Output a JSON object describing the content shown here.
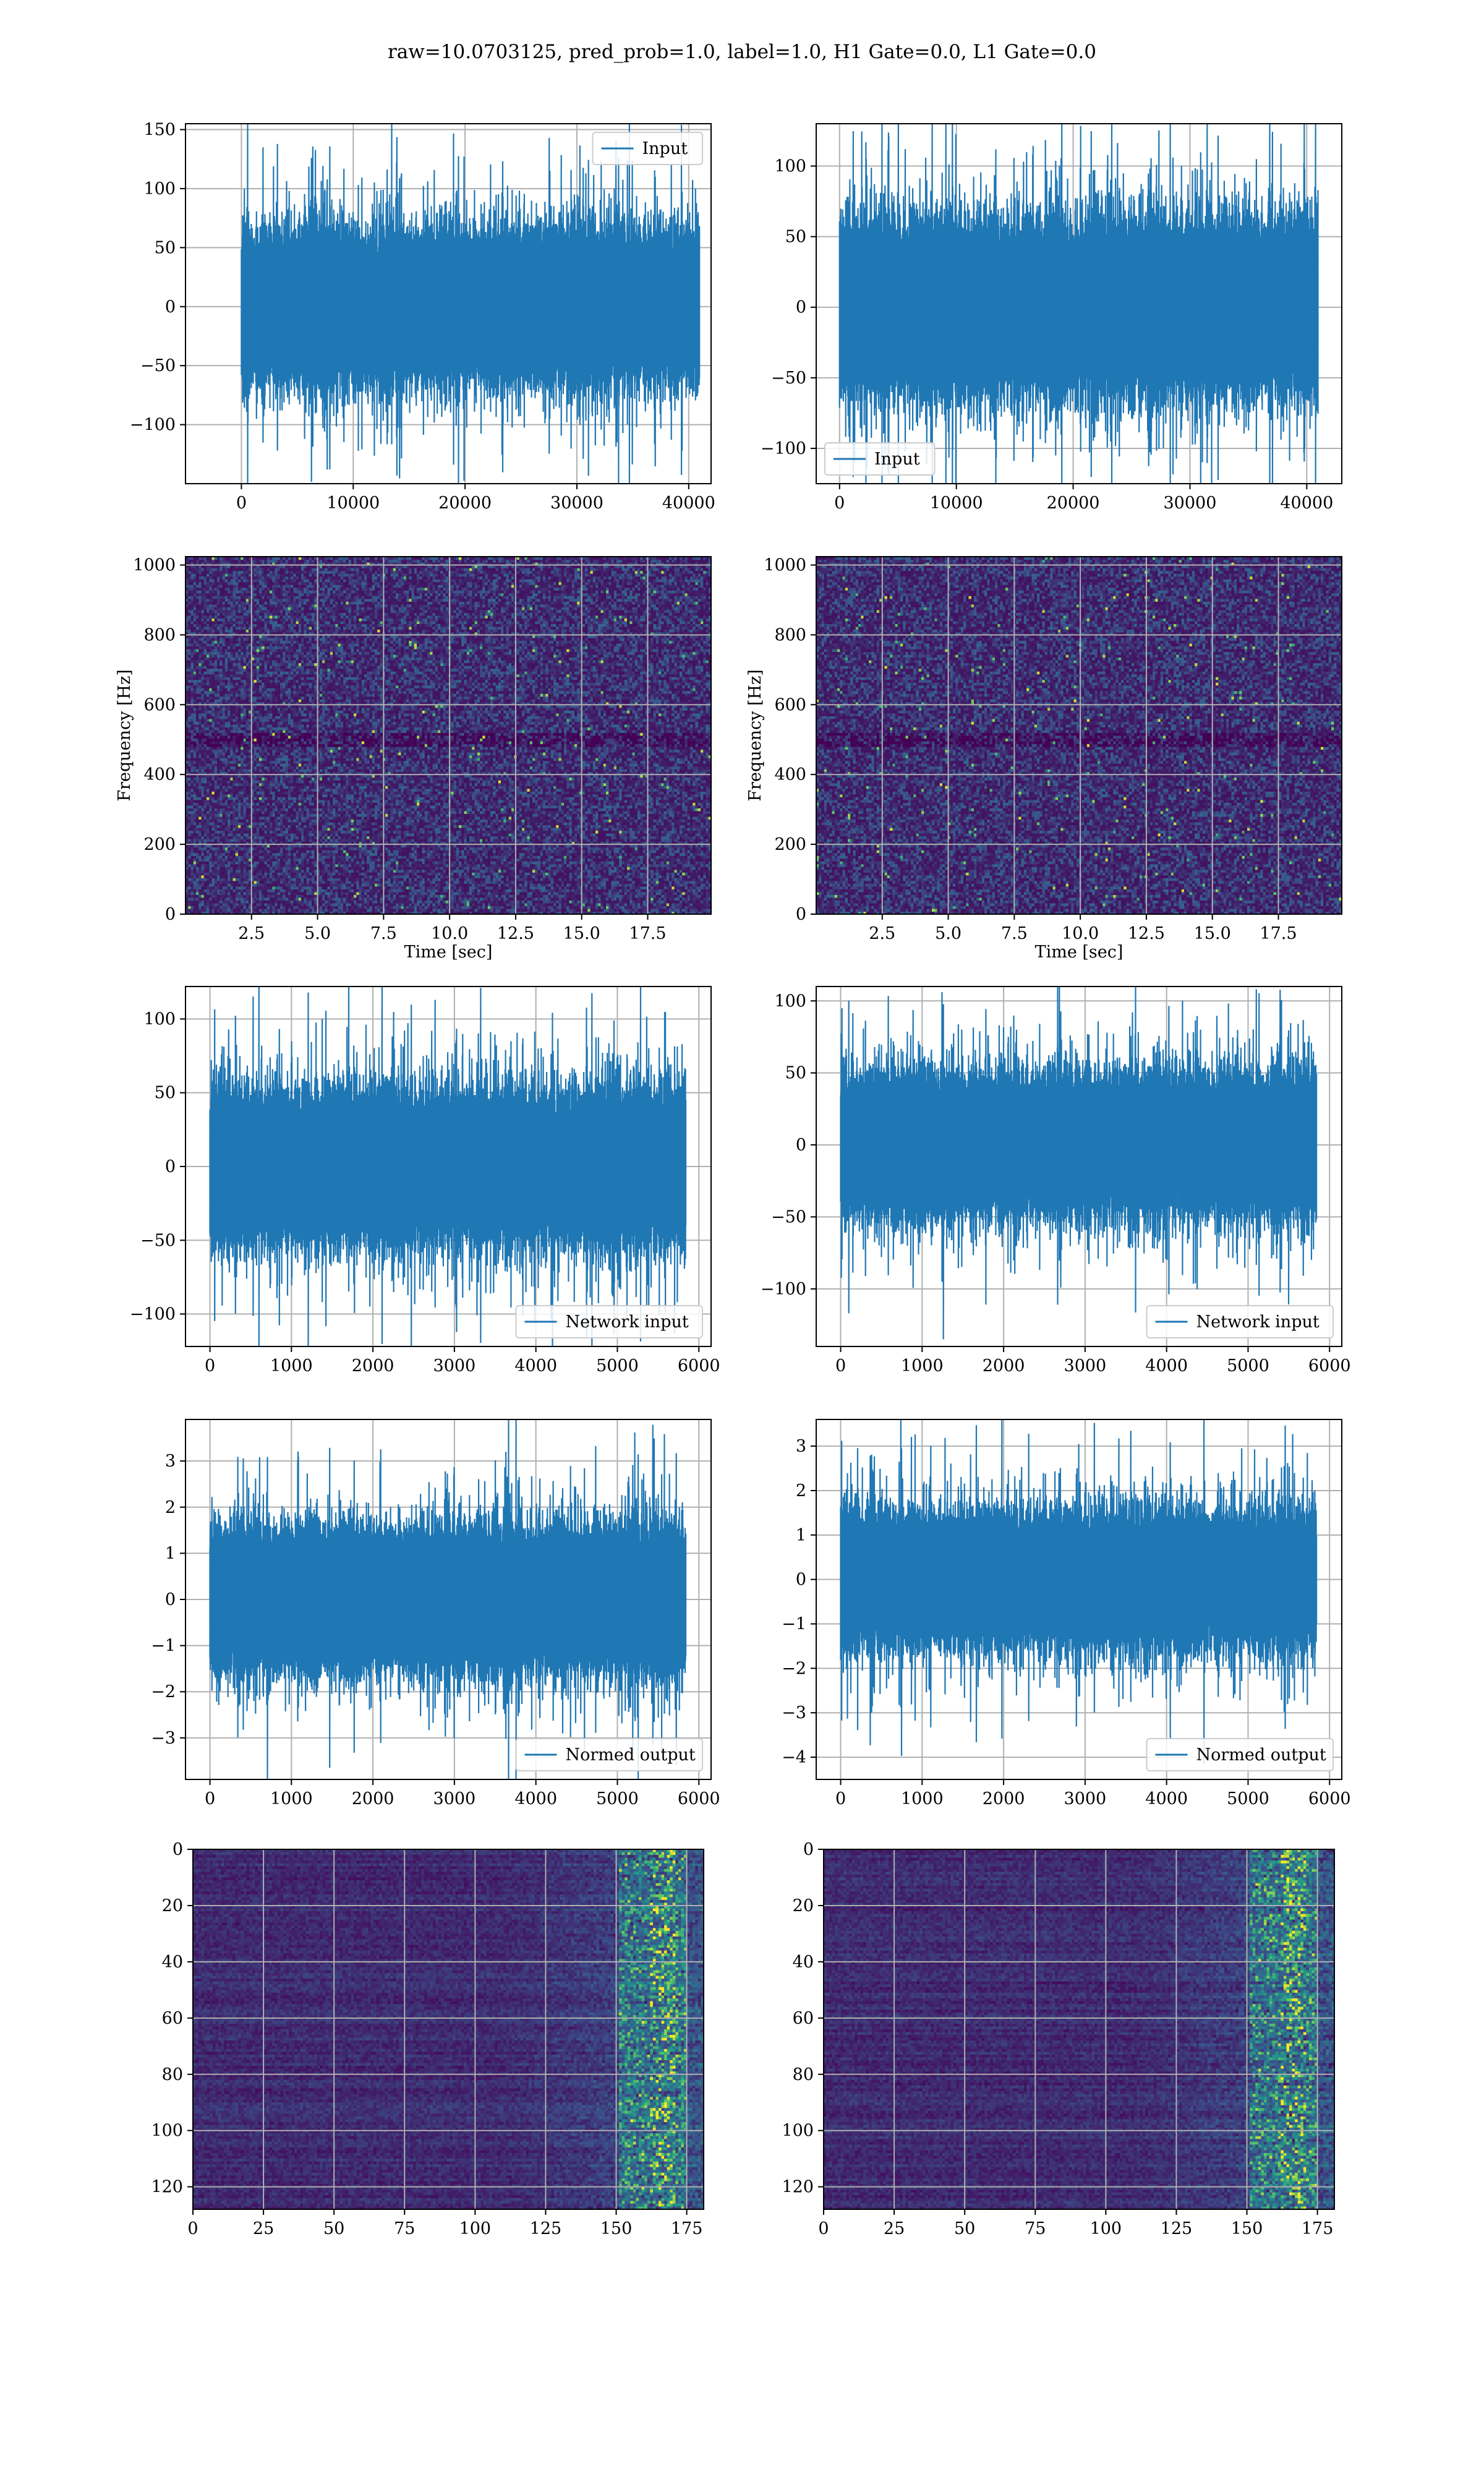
{
  "figure_title": "raw=10.0703125, pred_prob=1.0, label=1.0, H1 Gate=0.0, L1 Gate=0.0",
  "colors": {
    "line": "#1f77b4",
    "grid": "#b0b0b0",
    "bg_spec": "#3b0f52",
    "viridis": [
      "#440154",
      "#3b528b",
      "#21918c",
      "#5ec962",
      "#fde725"
    ]
  },
  "chart_data": [
    {
      "id": "row1-left",
      "type": "line",
      "legend": "Input",
      "legend_loc": "upper right",
      "xlim": [
        -5000,
        42000
      ],
      "ylim": [
        -150,
        155
      ],
      "amplitude": 48,
      "n_samples": 40960,
      "xticks": [
        0,
        10000,
        20000,
        30000,
        40000
      ],
      "xticklabels": [
        "0",
        "10000",
        "20000",
        "30000",
        "40000"
      ],
      "yticks": [
        -100,
        -50,
        0,
        50,
        100,
        150
      ],
      "yticklabels": [
        "−100",
        "−50",
        "0",
        "50",
        "100",
        "150"
      ]
    },
    {
      "id": "row1-right",
      "type": "line",
      "legend": "Input",
      "legend_loc": "lower left",
      "xlim": [
        -2000,
        43000
      ],
      "ylim": [
        -125,
        130
      ],
      "amplitude": 45,
      "n_samples": 40960,
      "xticks": [
        0,
        10000,
        20000,
        30000,
        40000
      ],
      "xticklabels": [
        "0",
        "10000",
        "20000",
        "30000",
        "40000"
      ],
      "yticks": [
        -100,
        -50,
        0,
        50,
        100
      ],
      "yticklabels": [
        "−100",
        "−50",
        "0",
        "50",
        "100"
      ]
    },
    {
      "id": "row2-left",
      "type": "heatmap",
      "xlabel": "Time [sec]",
      "ylabel": "Frequency [Hz]",
      "xlim": [
        0,
        19.9
      ],
      "ylim": [
        0,
        1024
      ],
      "xticks": [
        2.5,
        5.0,
        7.5,
        10.0,
        12.5,
        15.0,
        17.5
      ],
      "xticklabels": [
        "2.5",
        "5.0",
        "7.5",
        "10.0",
        "12.5",
        "15.0",
        "17.5"
      ],
      "yticks": [
        0,
        200,
        400,
        600,
        800,
        1000
      ],
      "yticklabels": [
        "0",
        "200",
        "400",
        "600",
        "800",
        "1000"
      ]
    },
    {
      "id": "row2-right",
      "type": "heatmap",
      "xlabel": "Time [sec]",
      "ylabel": "Frequency [Hz]",
      "xlim": [
        0,
        19.9
      ],
      "ylim": [
        0,
        1024
      ],
      "xticks": [
        2.5,
        5.0,
        7.5,
        10.0,
        12.5,
        15.0,
        17.5
      ],
      "xticklabels": [
        "2.5",
        "5.0",
        "7.5",
        "10.0",
        "12.5",
        "15.0",
        "17.5"
      ],
      "yticks": [
        0,
        200,
        400,
        600,
        800,
        1000
      ],
      "yticklabels": [
        "0",
        "200",
        "400",
        "600",
        "800",
        "1000"
      ]
    },
    {
      "id": "row3-left",
      "type": "line",
      "legend": "Network input",
      "legend_loc": "lower right",
      "xlim": [
        -300,
        6150
      ],
      "ylim": [
        -122,
        122
      ],
      "amplitude": 38,
      "n_samples": 5840,
      "xticks": [
        0,
        1000,
        2000,
        3000,
        4000,
        5000,
        6000
      ],
      "xticklabels": [
        "0",
        "1000",
        "2000",
        "3000",
        "4000",
        "5000",
        "6000"
      ],
      "yticks": [
        -100,
        -50,
        0,
        50,
        100
      ],
      "yticklabels": [
        "−100",
        "−50",
        "0",
        "50",
        "100"
      ]
    },
    {
      "id": "row3-right",
      "type": "line",
      "legend": "Network input",
      "legend_loc": "lower right",
      "xlim": [
        -300,
        6150
      ],
      "ylim": [
        -140,
        110
      ],
      "amplitude": 36,
      "n_samples": 5840,
      "xticks": [
        0,
        1000,
        2000,
        3000,
        4000,
        5000,
        6000
      ],
      "xticklabels": [
        "0",
        "1000",
        "2000",
        "3000",
        "4000",
        "5000",
        "6000"
      ],
      "yticks": [
        -100,
        -50,
        0,
        50,
        100
      ],
      "yticklabels": [
        "−100",
        "−50",
        "0",
        "50",
        "100"
      ]
    },
    {
      "id": "row4-left",
      "type": "line",
      "legend": "Normed output",
      "legend_loc": "lower right",
      "xlim": [
        -300,
        6150
      ],
      "ylim": [
        -3.9,
        3.9
      ],
      "amplitude": 1.15,
      "n_samples": 5840,
      "xticks": [
        0,
        1000,
        2000,
        3000,
        4000,
        5000,
        6000
      ],
      "xticklabels": [
        "0",
        "1000",
        "2000",
        "3000",
        "4000",
        "5000",
        "6000"
      ],
      "yticks": [
        -3,
        -2,
        -1,
        0,
        1,
        2,
        3
      ],
      "yticklabels": [
        "−3",
        "−2",
        "−1",
        "0",
        "1",
        "2",
        "3"
      ]
    },
    {
      "id": "row4-right",
      "type": "line",
      "legend": "Normed output",
      "legend_loc": "lower right",
      "xlim": [
        -300,
        6150
      ],
      "ylim": [
        -4.5,
        3.6
      ],
      "amplitude": 1.1,
      "n_samples": 5840,
      "xticks": [
        0,
        1000,
        2000,
        3000,
        4000,
        5000,
        6000
      ],
      "xticklabels": [
        "0",
        "1000",
        "2000",
        "3000",
        "4000",
        "5000",
        "6000"
      ],
      "yticks": [
        -4,
        -3,
        -2,
        -1,
        0,
        1,
        2,
        3
      ],
      "yticklabels": [
        "−4",
        "−3",
        "−2",
        "−1",
        "0",
        "1",
        "2",
        "3"
      ]
    },
    {
      "id": "row5-left",
      "type": "heatmap",
      "y_inverted": true,
      "xlim": [
        0,
        181
      ],
      "ylim": [
        0,
        128
      ],
      "xticks": [
        0,
        25,
        50,
        75,
        100,
        125,
        150,
        175
      ],
      "xticklabels": [
        "0",
        "25",
        "50",
        "75",
        "100",
        "125",
        "150",
        "175"
      ],
      "yticks": [
        0,
        20,
        40,
        60,
        80,
        100,
        120
      ],
      "yticklabels": [
        "0",
        "20",
        "40",
        "60",
        "80",
        "100",
        "120"
      ]
    },
    {
      "id": "row5-right",
      "type": "heatmap",
      "y_inverted": true,
      "xlim": [
        0,
        181
      ],
      "ylim": [
        0,
        128
      ],
      "xticks": [
        0,
        25,
        50,
        75,
        100,
        125,
        150,
        175
      ],
      "xticklabels": [
        "0",
        "25",
        "50",
        "75",
        "100",
        "125",
        "150",
        "175"
      ],
      "yticks": [
        0,
        20,
        40,
        60,
        80,
        100,
        120
      ],
      "yticklabels": [
        "0",
        "20",
        "40",
        "60",
        "80",
        "100",
        "120"
      ]
    }
  ]
}
